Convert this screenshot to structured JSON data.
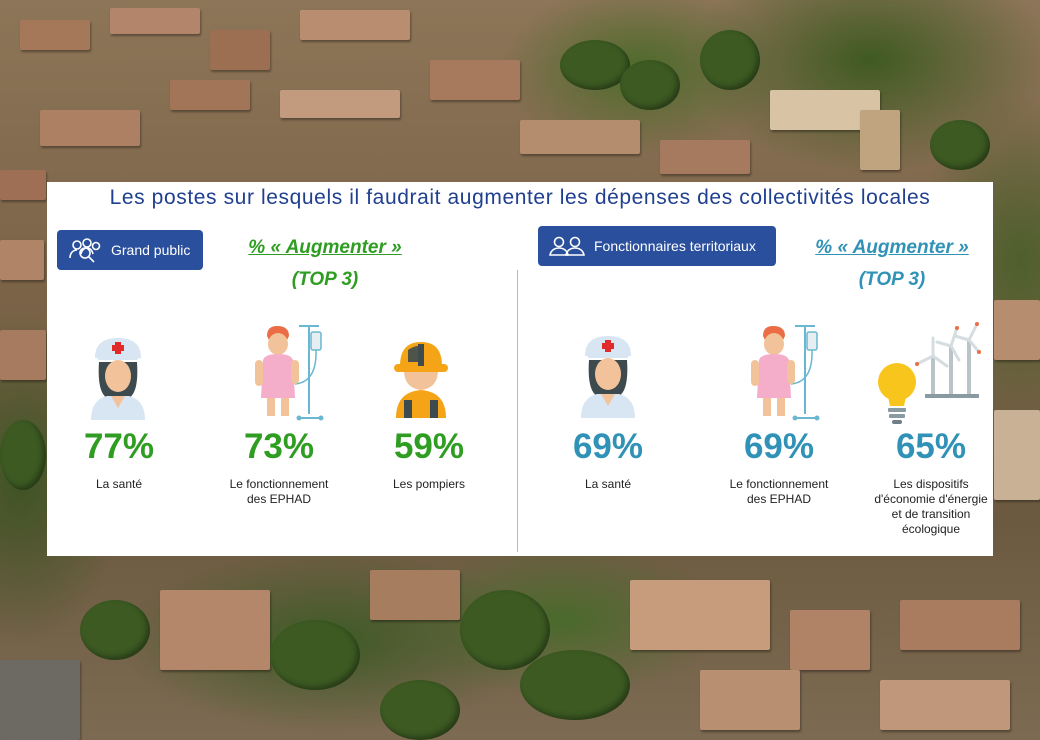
{
  "title": "Les postes sur lesquels il faudrait augmenter les dépenses des collectivités locales",
  "left_panel": {
    "badge": "Grand public",
    "badge_icon": "people-group-icon",
    "heading_line1": "% « Augmenter »",
    "heading_line2": "(TOP 3)",
    "color": "#2e9d22"
  },
  "right_panel": {
    "badge": "Fonctionnaires territoriaux",
    "badge_icon": "people-pair-icon",
    "heading_line1": "% « Augmenter »",
    "heading_line2": "(TOP 3)",
    "color": "#2f92b6"
  },
  "colors": {
    "badge_bg": "#2a4f9c",
    "title": "#1f3f8f"
  },
  "chart_data": [
    {
      "type": "table",
      "group": "Grand public",
      "categories": [
        "La santé",
        "Le fonctionnement des EPHAD",
        "Les pompiers"
      ],
      "values": [
        77,
        73,
        59
      ],
      "value_labels": [
        "77%",
        "73%",
        "59%"
      ],
      "icons": [
        "nurse-icon",
        "patient-iv-icon",
        "firefighter-icon"
      ]
    },
    {
      "type": "table",
      "group": "Fonctionnaires territoriaux",
      "categories": [
        "La santé",
        "Le fonctionnement des EPHAD",
        "Les dispositifs d'économie d'énergie et de transition écologique"
      ],
      "values": [
        69,
        69,
        65
      ],
      "value_labels": [
        "69%",
        "69%",
        "65%"
      ],
      "icons": [
        "nurse-icon",
        "patient-iv-icon",
        "lightbulb-wind-turbine-icon"
      ]
    }
  ]
}
